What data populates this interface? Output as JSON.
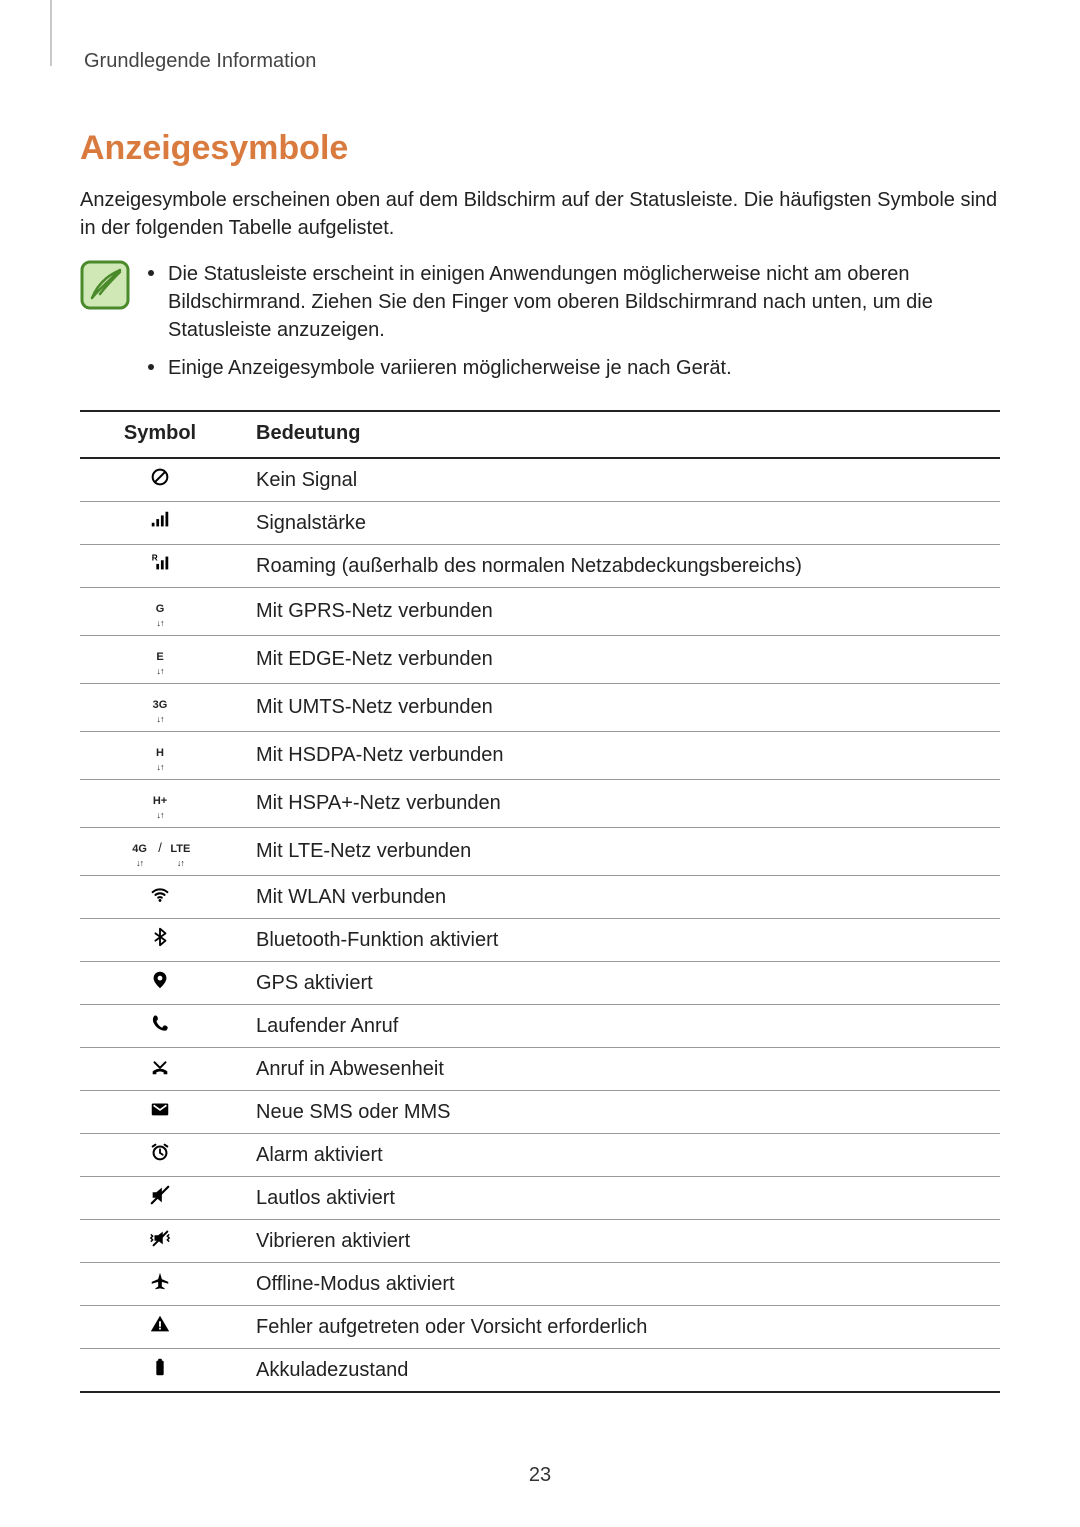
{
  "running_head": "Grundlegende Information",
  "section_title": "Anzeigesymbole",
  "intro": "Anzeigesymbole erscheinen oben auf dem Bildschirm auf der Statusleiste. Die häufigsten Symbole sind in der folgenden Tabelle aufgelistet.",
  "notes": [
    "Die Statusleiste erscheint in einigen Anwendungen möglicherweise nicht am oberen Bildschirmrand. Ziehen Sie den Finger vom oberen Bildschirmrand nach unten, um die Statusleiste anzuzeigen.",
    "Einige Anzeigesymbole variieren möglicherweise je nach Gerät."
  ],
  "note_icon": {
    "border_color": "#4a8a2a",
    "fill_color": "#cfe8b6",
    "stroke_color": "#4a8a2a"
  },
  "table": {
    "header_symbol": "Symbol",
    "header_meaning": "Bedeutung",
    "rows": [
      {
        "icon": "no-signal",
        "meaning": "Kein Signal"
      },
      {
        "icon": "signal",
        "meaning": "Signalstärke"
      },
      {
        "icon": "roaming",
        "meaning": "Roaming (außerhalb des normalen Netzabdeckungsbereichs)"
      },
      {
        "icon": "net",
        "net_label": "G",
        "meaning": "Mit GPRS-Netz verbunden"
      },
      {
        "icon": "net",
        "net_label": "E",
        "meaning": "Mit EDGE-Netz verbunden"
      },
      {
        "icon": "net",
        "net_label": "3G",
        "meaning": "Mit UMTS-Netz verbunden"
      },
      {
        "icon": "net",
        "net_label": "H",
        "meaning": "Mit HSDPA-Netz verbunden"
      },
      {
        "icon": "net",
        "net_label": "H+",
        "meaning": "Mit HSPA+-Netz verbunden"
      },
      {
        "icon": "net-dual",
        "net_label": "4G",
        "net_label2": "LTE",
        "meaning": "Mit LTE-Netz verbunden"
      },
      {
        "icon": "wifi",
        "meaning": "Mit WLAN verbunden"
      },
      {
        "icon": "bluetooth",
        "meaning": "Bluetooth-Funktion aktiviert"
      },
      {
        "icon": "gps",
        "meaning": "GPS aktiviert"
      },
      {
        "icon": "call",
        "meaning": "Laufender Anruf"
      },
      {
        "icon": "missed-call",
        "meaning": "Anruf in Abwesenheit"
      },
      {
        "icon": "message",
        "meaning": "Neue SMS oder MMS"
      },
      {
        "icon": "alarm",
        "meaning": "Alarm aktiviert"
      },
      {
        "icon": "mute",
        "meaning": "Lautlos aktiviert"
      },
      {
        "icon": "vibrate",
        "meaning": "Vibrieren aktiviert"
      },
      {
        "icon": "airplane",
        "meaning": "Offline-Modus aktiviert"
      },
      {
        "icon": "warning",
        "meaning": "Fehler aufgetreten oder Vorsicht erforderlich"
      },
      {
        "icon": "battery",
        "meaning": "Akkuladezustand"
      }
    ]
  },
  "colors": {
    "heading": "#d97b3e",
    "text": "#222222",
    "rule_strong": "#222222",
    "rule_light": "#999999",
    "margin_line": "#c9c9c9"
  },
  "page_number": "23"
}
